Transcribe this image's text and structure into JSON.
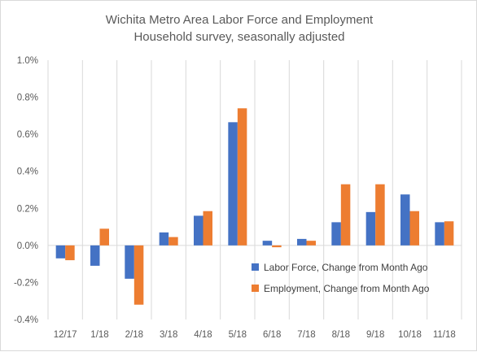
{
  "chart_data": {
    "type": "bar",
    "title": "Wichita Metro Area Labor Force and Employment",
    "subtitle": "Household survey, seasonally adjusted",
    "xlabel": "",
    "ylabel": "",
    "categories": [
      "12/17",
      "1/18",
      "2/18",
      "3/18",
      "4/18",
      "5/18",
      "6/18",
      "7/18",
      "8/18",
      "9/18",
      "10/18",
      "11/18"
    ],
    "series": [
      {
        "name": "Labor Force, Change from Month Ago",
        "color": "#4472c4",
        "values": [
          -0.07,
          -0.11,
          -0.18,
          0.07,
          0.16,
          0.665,
          0.025,
          0.035,
          0.125,
          0.18,
          0.275,
          0.125
        ]
      },
      {
        "name": "Employment, Change from Month Ago",
        "color": "#ed7d31",
        "values": [
          -0.08,
          0.09,
          -0.32,
          0.045,
          0.185,
          0.74,
          -0.01,
          0.025,
          0.33,
          0.33,
          0.185,
          0.13
        ]
      }
    ],
    "ylim": [
      -0.4,
      1.0
    ],
    "yticks": [
      -0.4,
      -0.2,
      0.0,
      0.2,
      0.4,
      0.6,
      0.8,
      1.0
    ],
    "ytick_labels": [
      "-0.4%",
      "-0.2%",
      "0.0%",
      "0.2%",
      "0.4%",
      "0.6%",
      "0.8%",
      "1.0%"
    ],
    "grid": "vertical category separators",
    "legend": "inside lower-right",
    "colors": {
      "gridline": "#d9d9d9",
      "axis_text": "#595959"
    }
  }
}
